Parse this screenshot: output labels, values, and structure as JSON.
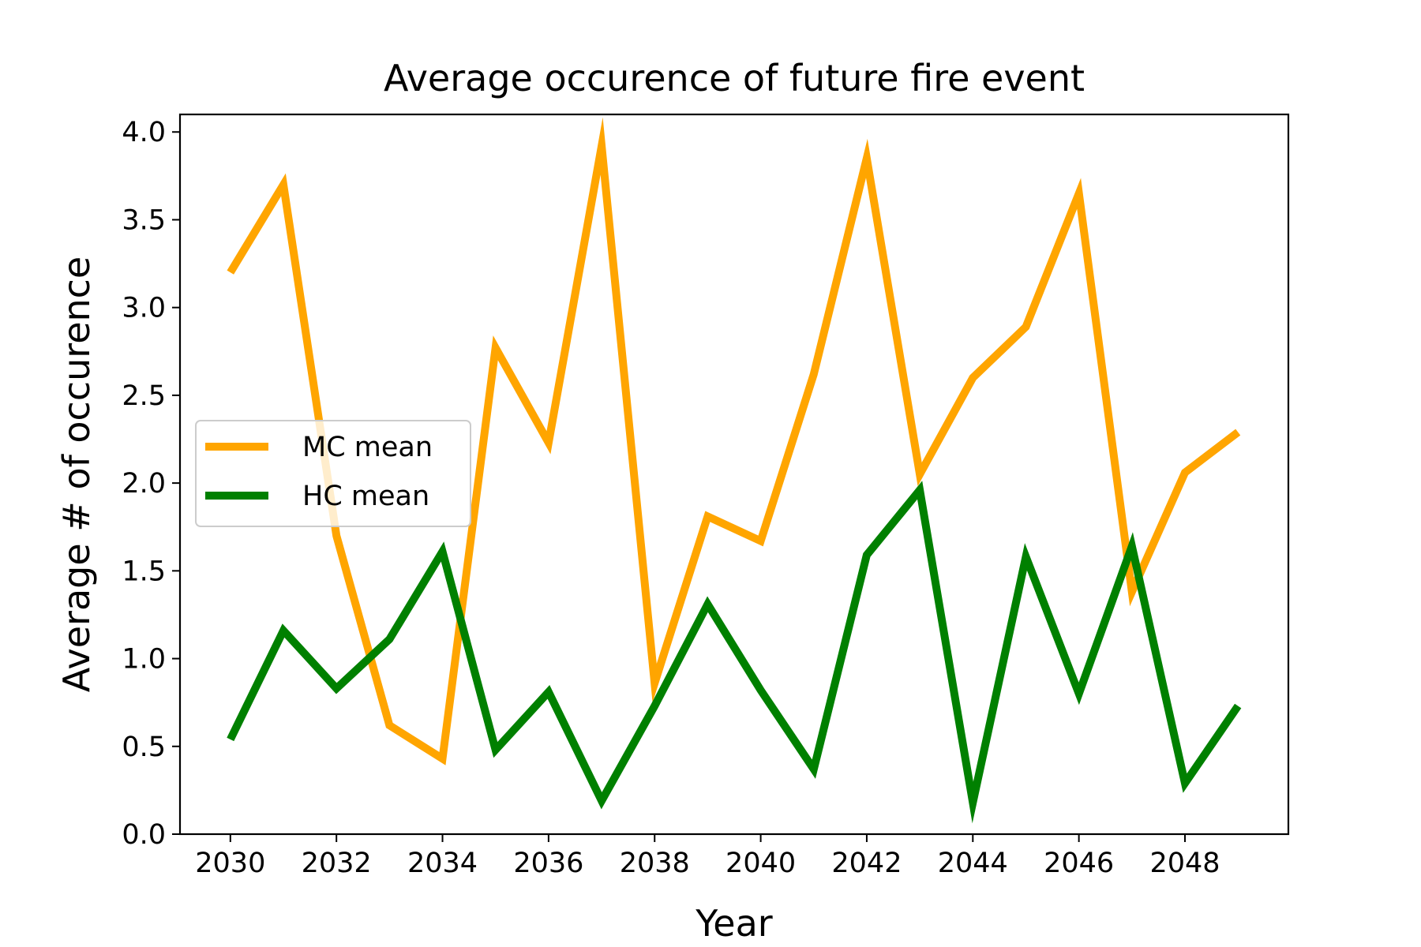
{
  "chart_data": {
    "type": "line",
    "title": "Average occurence of future fire event",
    "xlabel": "Year",
    "ylabel": "Average # of occurence",
    "x": [
      2030,
      2031,
      2032,
      2033,
      2034,
      2035,
      2036,
      2037,
      2038,
      2039,
      2040,
      2041,
      2042,
      2043,
      2044,
      2045,
      2046,
      2047,
      2048,
      2049
    ],
    "xlim": [
      2029.05,
      2049.95
    ],
    "ylim": [
      0,
      4.1
    ],
    "xticks": [
      2030,
      2032,
      2034,
      2036,
      2038,
      2040,
      2042,
      2044,
      2046,
      2048
    ],
    "yticks": [
      0.0,
      0.5,
      1.0,
      1.5,
      2.0,
      2.5,
      3.0,
      3.5,
      4.0
    ],
    "xtick_labels": [
      "2030",
      "2032",
      "2034",
      "2036",
      "2038",
      "2040",
      "2042",
      "2044",
      "2046",
      "2048"
    ],
    "ytick_labels": [
      "0.0",
      "0.5",
      "1.0",
      "1.5",
      "2.0",
      "2.5",
      "3.0",
      "3.5",
      "4.0"
    ],
    "grid": false,
    "legend_position": "center-left",
    "series": [
      {
        "name": "MC mean",
        "color": "#ffa500",
        "values": [
          3.2,
          3.7,
          1.7,
          0.62,
          0.43,
          2.77,
          2.23,
          3.92,
          0.86,
          1.81,
          1.67,
          2.62,
          3.85,
          2.05,
          2.6,
          2.89,
          3.65,
          1.38,
          2.06,
          2.29
        ]
      },
      {
        "name": "HC mean",
        "color": "#008000",
        "values": [
          0.54,
          1.16,
          0.83,
          1.11,
          1.61,
          0.48,
          0.81,
          0.19,
          0.73,
          1.31,
          0.82,
          0.37,
          1.59,
          1.96,
          0.18,
          1.58,
          0.8,
          1.64,
          0.29,
          0.73
        ]
      }
    ]
  }
}
